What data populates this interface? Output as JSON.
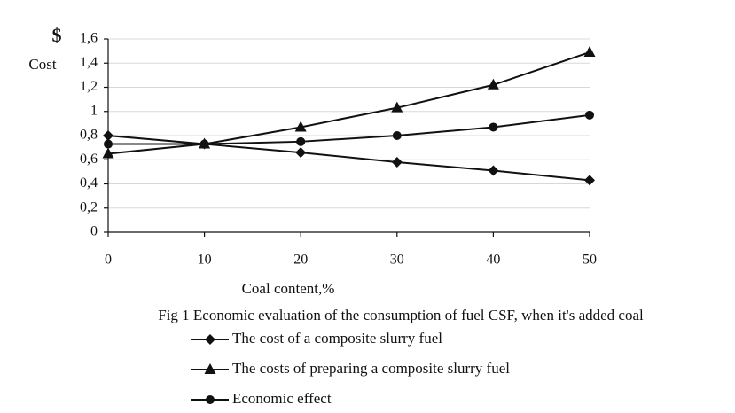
{
  "chart_data": {
    "type": "line",
    "yunit": "$",
    "ylabel": "Cost",
    "xlabel": "Coal content,%",
    "caption": "Fig 1 Economic evaluation of the consumption of fuel CSF, when it's added coal",
    "x": [
      0,
      10,
      20,
      30,
      40,
      50
    ],
    "xlim": [
      0,
      50
    ],
    "xticks": [
      0,
      10,
      20,
      30,
      40,
      50
    ],
    "ylim": [
      0,
      1.6
    ],
    "yticks": [
      0,
      {
        "value": 0.2,
        "label": "0,2"
      },
      {
        "value": 0.4,
        "label": "0,4"
      },
      {
        "value": 0.6,
        "label": "0,6"
      },
      {
        "value": 0.8,
        "label": "0,8"
      },
      1,
      {
        "value": 1.2,
        "label": "1,2"
      },
      {
        "value": 1.4,
        "label": "1,4"
      },
      {
        "value": 1.6,
        "label": "1,6"
      }
    ],
    "grid": true,
    "series": [
      {
        "name": "The cost of a composite slurry fuel",
        "color": "#111111",
        "marker": "diamond",
        "values": [
          0.8,
          0.73,
          0.66,
          0.58,
          0.51,
          0.43
        ]
      },
      {
        "name": "The costs of preparing a composite slurry fuel",
        "color": "#111111",
        "marker": "triangle",
        "values": [
          0.65,
          0.73,
          0.87,
          1.03,
          1.22,
          1.49
        ]
      },
      {
        "name": "Economic effect",
        "color": "#111111",
        "marker": "circle",
        "values": [
          0.73,
          0.73,
          0.75,
          0.8,
          0.87,
          0.97
        ]
      }
    ]
  }
}
